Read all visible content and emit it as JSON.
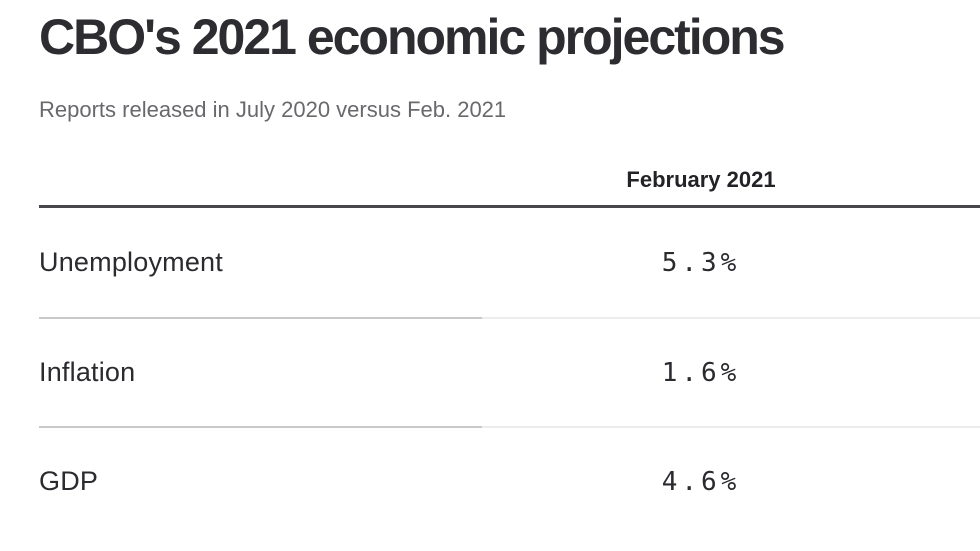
{
  "page": {
    "title": "CBO's 2021 economic projections",
    "subtitle": "Reports released in July 2020 versus Feb. 2021"
  },
  "table": {
    "value_column_header": "February 2021",
    "rows": [
      {
        "label": "Unemployment",
        "value": "5.3%"
      },
      {
        "label": "Inflation",
        "value": "1.6%"
      },
      {
        "label": "GDP",
        "value": "4.6%"
      }
    ]
  },
  "chart_data": {
    "type": "table",
    "title": "CBO's 2021 economic projections",
    "subtitle": "Reports released in July 2020 versus Feb. 2021",
    "columns": [
      "",
      "February 2021"
    ],
    "categories": [
      "Unemployment",
      "Inflation",
      "GDP"
    ],
    "series": [
      {
        "name": "February 2021",
        "values": [
          5.3,
          1.6,
          4.6
        ],
        "unit": "%"
      }
    ]
  },
  "colors": {
    "title_text": "#2c2c31",
    "subtitle_text": "#69696d",
    "header_rule": "#47474c",
    "row_separator_left": "#c9c9c9",
    "row_separator_right": "#ececec",
    "background": "#ffffff"
  }
}
